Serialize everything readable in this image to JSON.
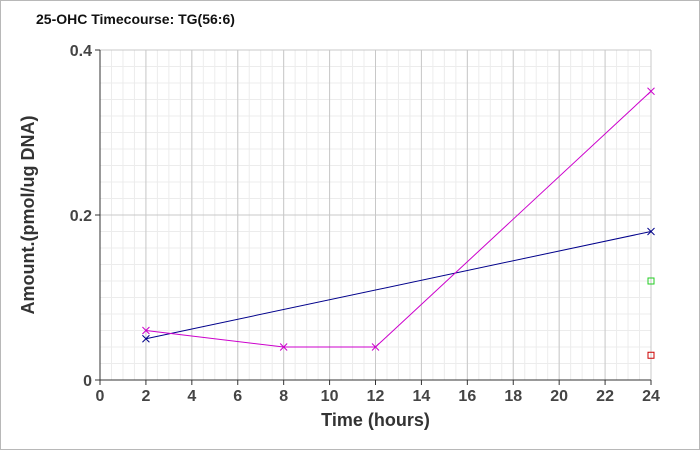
{
  "chart_data": {
    "type": "line",
    "title": "25-OHC Timecourse: TG(56:6)",
    "xlabel": "Time (hours)",
    "ylabel": "Amount.(pmol/ug DNA)",
    "xlim": [
      0,
      24
    ],
    "ylim": [
      0,
      0.4
    ],
    "x_ticks": [
      "0",
      "2",
      "4",
      "6",
      "8",
      "10",
      "12",
      "14",
      "16",
      "18",
      "20",
      "22",
      "24"
    ],
    "y_ticks": [
      "0",
      "0.2",
      "0.4"
    ],
    "grid": true,
    "series": [
      {
        "color": "#00008b",
        "marker": "x",
        "line": true,
        "x": [
          2,
          24
        ],
        "y": [
          0.05,
          0.18
        ]
      },
      {
        "color": "#cc00cc",
        "marker": "x",
        "line": true,
        "x": [
          2,
          8,
          12,
          24
        ],
        "y": [
          0.06,
          0.04,
          0.04,
          0.35
        ]
      },
      {
        "color": "#22cc22",
        "marker": "square",
        "line": false,
        "x": [
          24
        ],
        "y": [
          0.12
        ]
      },
      {
        "color": "#cc0000",
        "marker": "square",
        "line": false,
        "x": [
          24
        ],
        "y": [
          0.03
        ]
      }
    ]
  }
}
